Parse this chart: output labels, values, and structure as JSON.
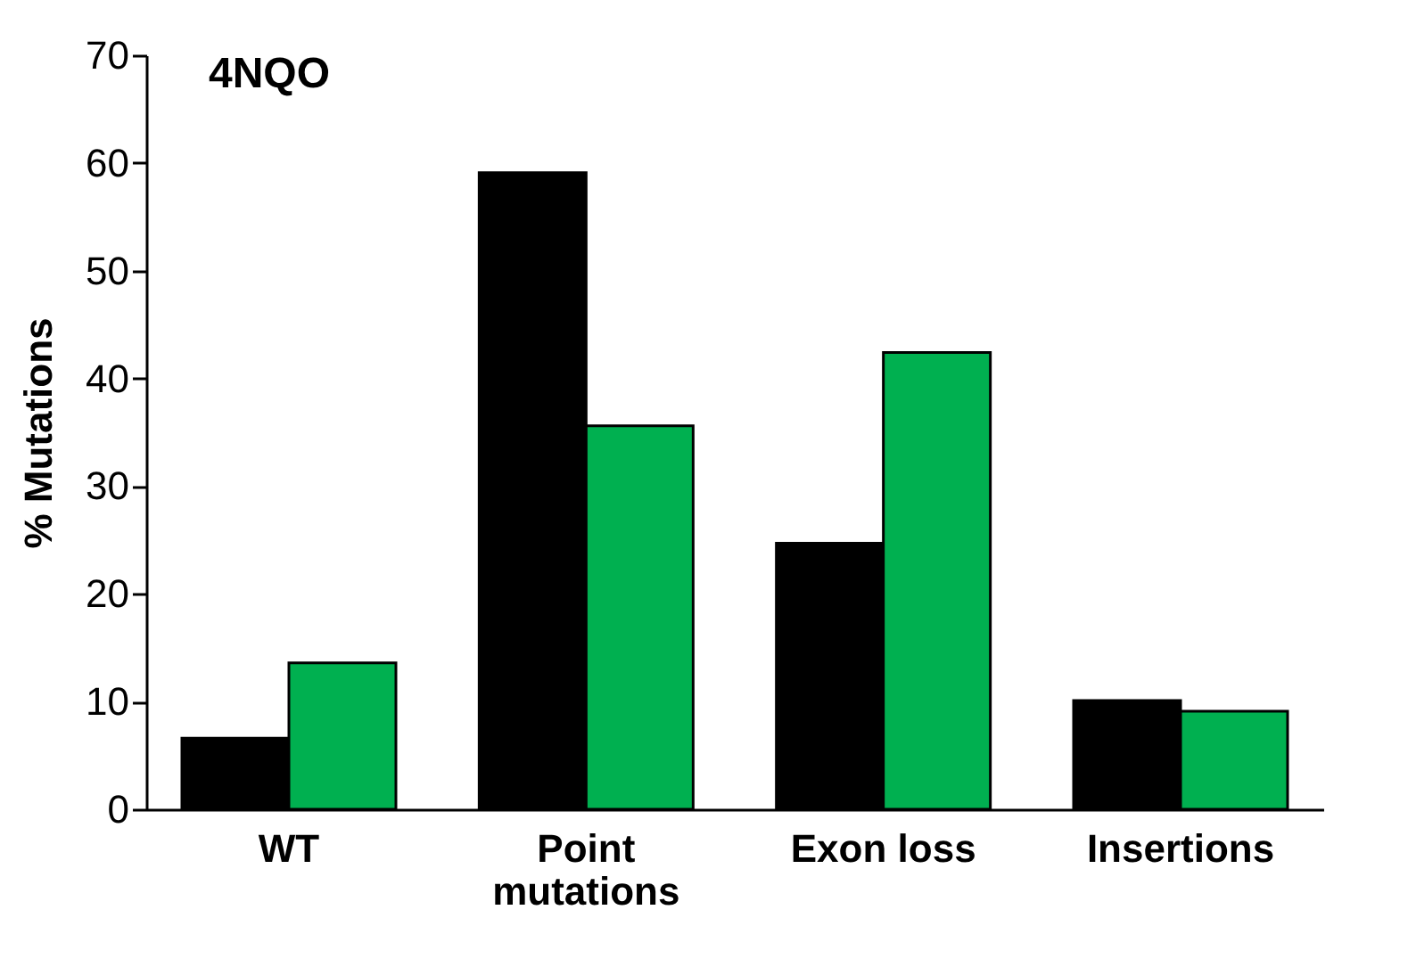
{
  "chart_data": {
    "type": "bar",
    "title": "4NQO",
    "ylabel": "% Mutations",
    "categories": [
      "WT",
      "Point\nmutations",
      "Exon loss",
      "Insertions"
    ],
    "series": [
      {
        "color": "#000000",
        "values": [
          6.6,
          59.1,
          24.7,
          10.1
        ]
      },
      {
        "color": "#00b050",
        "values": [
          13.6,
          35.6,
          42.4,
          9.1
        ]
      }
    ],
    "ylim": [
      0,
      70
    ],
    "yticks": [
      0,
      10,
      20,
      30,
      40,
      50,
      60,
      70
    ],
    "grid": false,
    "legend": false
  }
}
